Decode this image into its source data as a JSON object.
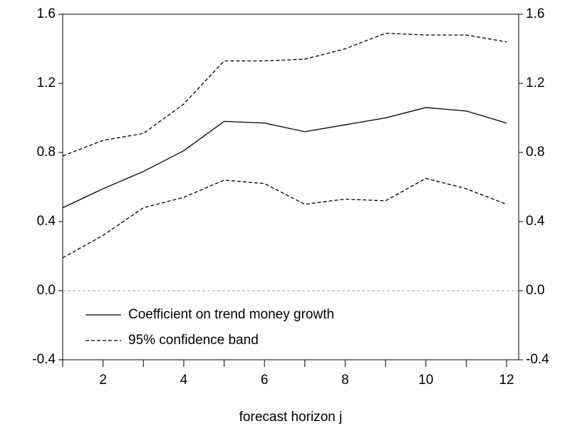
{
  "chart_data": {
    "type": "line",
    "x_label": "forecast horizon j",
    "x": [
      1,
      2,
      3,
      4,
      5,
      6,
      7,
      8,
      9,
      10,
      11,
      12
    ],
    "series": [
      {
        "name": "Coefficient on trend money growth",
        "color": "#000000",
        "dash": false,
        "values": [
          0.48,
          0.59,
          0.69,
          0.81,
          0.98,
          0.97,
          0.92,
          0.96,
          1.0,
          1.06,
          1.04,
          0.97
        ]
      },
      {
        "name": "95% confidence band",
        "color": "#000000",
        "dash": true,
        "values": [
          0.78,
          0.87,
          0.91,
          1.08,
          1.33,
          1.33,
          1.34,
          1.4,
          1.49,
          1.48,
          1.48,
          1.44
        ]
      },
      {
        "color": "#000000",
        "dash": true,
        "values": [
          0.19,
          0.32,
          0.48,
          0.54,
          0.64,
          0.62,
          0.5,
          0.53,
          0.52,
          0.65,
          0.59,
          0.5
        ]
      }
    ],
    "xlim": [
      1,
      12.3
    ],
    "xticks": [
      2,
      4,
      6,
      8,
      10,
      12
    ],
    "xminor_ticks": [
      1,
      3,
      5,
      7,
      9,
      11
    ],
    "ylim": [
      -0.4,
      1.6
    ],
    "yticks": [
      {
        "value": -0.4,
        "label": "-0.4"
      },
      {
        "value": 0,
        "label": "0.0"
      },
      {
        "value": 0.4,
        "label": "0.4"
      },
      {
        "value": 0.8,
        "label": "0.8"
      },
      {
        "value": 1.2,
        "label": "1.2"
      },
      {
        "value": 1.6,
        "label": "1.6"
      }
    ],
    "mirror_y_axis": true,
    "zero_line": true,
    "legend": "lower-left"
  }
}
